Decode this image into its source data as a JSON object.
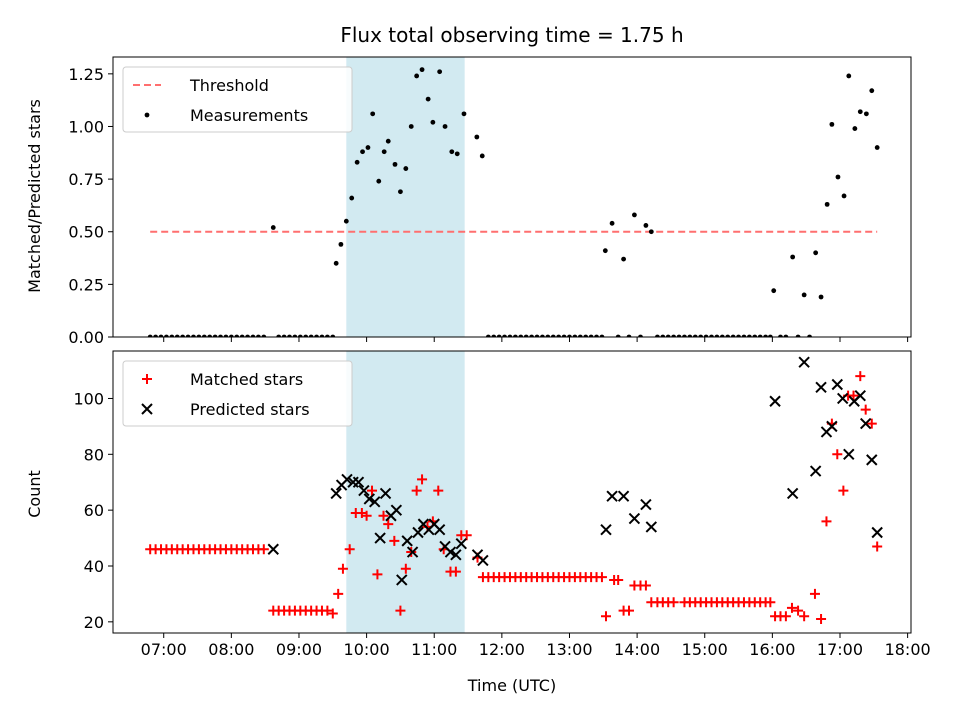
{
  "chart_data": {
    "type": "scatter",
    "title": "Flux total observing time = 1.75 h",
    "xlabel": "Time (UTC)",
    "x_unit": "hour (UTC)",
    "xlim": [
      6.25,
      18.05
    ],
    "x_tick_labels": [
      "07:00",
      "08:00",
      "09:00",
      "10:00",
      "11:00",
      "12:00",
      "13:00",
      "14:00",
      "15:00",
      "16:00",
      "17:00",
      "18:00"
    ],
    "highlight_span": [
      9.7,
      11.45
    ],
    "top": {
      "ylabel": "Matched/Predicted stars",
      "ylim": [
        0,
        1.33
      ],
      "y_ticks": [
        0,
        0.25,
        0.5,
        0.75,
        1.0,
        1.25
      ],
      "y_tick_labels": [
        "0.00",
        "0.25",
        "0.50",
        "0.75",
        "1.00",
        "1.25"
      ],
      "legend_position": "upper-left",
      "threshold": {
        "name": "Threshold",
        "value": 0.5,
        "x_range": [
          6.8,
          17.55
        ],
        "color": "#ff6f6f"
      },
      "measurements": {
        "name": "Measurements",
        "color": "#000000",
        "points": [
          [
            8.62,
            0.52
          ],
          [
            9.55,
            0.35
          ],
          [
            9.62,
            0.44
          ],
          [
            9.7,
            0.55
          ],
          [
            9.78,
            0.66
          ],
          [
            9.86,
            0.83
          ],
          [
            9.94,
            0.88
          ],
          [
            10.02,
            0.9
          ],
          [
            10.09,
            1.06
          ],
          [
            10.18,
            0.74
          ],
          [
            10.26,
            0.88
          ],
          [
            10.32,
            0.93
          ],
          [
            10.42,
            0.82
          ],
          [
            10.5,
            0.69
          ],
          [
            10.58,
            0.8
          ],
          [
            10.66,
            1.0
          ],
          [
            10.74,
            1.24
          ],
          [
            10.82,
            1.27
          ],
          [
            10.91,
            1.13
          ],
          [
            10.98,
            1.02
          ],
          [
            11.08,
            1.26
          ],
          [
            11.16,
            1.0
          ],
          [
            11.26,
            0.88
          ],
          [
            11.34,
            0.87
          ],
          [
            11.44,
            1.06
          ],
          [
            11.63,
            0.95
          ],
          [
            11.71,
            0.86
          ],
          [
            13.53,
            0.41
          ],
          [
            13.63,
            0.54
          ],
          [
            13.8,
            0.37
          ],
          [
            13.96,
            0.58
          ],
          [
            14.13,
            0.53
          ],
          [
            14.21,
            0.5
          ],
          [
            16.02,
            0.22
          ],
          [
            16.3,
            0.38
          ],
          [
            16.47,
            0.2
          ],
          [
            16.64,
            0.4
          ],
          [
            16.72,
            0.19
          ],
          [
            16.81,
            0.63
          ],
          [
            16.88,
            1.01
          ],
          [
            16.97,
            0.76
          ],
          [
            17.06,
            0.67
          ],
          [
            17.13,
            1.24
          ],
          [
            17.22,
            0.99
          ],
          [
            17.3,
            1.07
          ],
          [
            17.39,
            1.06
          ],
          [
            17.47,
            1.17
          ],
          [
            17.55,
            0.9
          ]
        ],
        "zero_points_x": [
          6.8,
          6.88,
          6.96,
          7.04,
          7.12,
          7.2,
          7.28,
          7.36,
          7.44,
          7.52,
          7.6,
          7.68,
          7.76,
          7.84,
          7.92,
          8.0,
          8.08,
          8.16,
          8.24,
          8.32,
          8.4,
          8.48,
          8.7,
          8.78,
          8.86,
          8.94,
          9.02,
          9.1,
          9.18,
          9.26,
          9.34,
          9.42,
          9.5,
          11.8,
          11.88,
          11.96,
          12.04,
          12.12,
          12.2,
          12.28,
          12.36,
          12.44,
          12.52,
          12.6,
          12.68,
          12.76,
          12.84,
          12.92,
          13.0,
          13.08,
          13.16,
          13.24,
          13.32,
          13.4,
          13.48,
          13.72,
          13.88,
          14.05,
          14.3,
          14.38,
          14.46,
          14.54,
          14.62,
          14.7,
          14.78,
          14.86,
          14.94,
          15.02,
          15.1,
          15.18,
          15.26,
          15.34,
          15.42,
          15.5,
          15.58,
          15.66,
          15.74,
          15.82,
          15.9,
          15.97,
          16.12,
          16.2,
          16.38,
          16.55
        ]
      }
    },
    "bottom": {
      "ylabel": "Count",
      "ylim": [
        16,
        117
      ],
      "y_ticks": [
        20,
        40,
        60,
        80,
        100
      ],
      "y_tick_labels": [
        "20",
        "40",
        "60",
        "80",
        "100"
      ],
      "legend_position": "upper-left",
      "matched": {
        "name": "Matched stars",
        "color": "#ff0000",
        "points": [
          [
            6.8,
            46
          ],
          [
            6.88,
            46
          ],
          [
            6.96,
            46
          ],
          [
            7.04,
            46
          ],
          [
            7.12,
            46
          ],
          [
            7.2,
            46
          ],
          [
            7.28,
            46
          ],
          [
            7.36,
            46
          ],
          [
            7.44,
            46
          ],
          [
            7.52,
            46
          ],
          [
            7.6,
            46
          ],
          [
            7.68,
            46
          ],
          [
            7.76,
            46
          ],
          [
            7.84,
            46
          ],
          [
            7.92,
            46
          ],
          [
            8.0,
            46
          ],
          [
            8.08,
            46
          ],
          [
            8.16,
            46
          ],
          [
            8.24,
            46
          ],
          [
            8.32,
            46
          ],
          [
            8.4,
            46
          ],
          [
            8.48,
            46
          ],
          [
            8.62,
            24
          ],
          [
            8.7,
            24
          ],
          [
            8.78,
            24
          ],
          [
            8.86,
            24
          ],
          [
            8.94,
            24
          ],
          [
            9.02,
            24
          ],
          [
            9.1,
            24
          ],
          [
            9.18,
            24
          ],
          [
            9.26,
            24
          ],
          [
            9.34,
            24
          ],
          [
            9.42,
            24
          ],
          [
            9.5,
            23
          ],
          [
            9.58,
            30
          ],
          [
            9.65,
            39
          ],
          [
            9.75,
            46
          ],
          [
            9.84,
            59
          ],
          [
            9.93,
            59
          ],
          [
            10.0,
            58
          ],
          [
            10.08,
            67
          ],
          [
            10.16,
            37
          ],
          [
            10.25,
            58
          ],
          [
            10.32,
            55
          ],
          [
            10.41,
            49
          ],
          [
            10.5,
            24
          ],
          [
            10.58,
            39
          ],
          [
            10.66,
            45
          ],
          [
            10.74,
            67
          ],
          [
            10.82,
            71
          ],
          [
            10.9,
            54
          ],
          [
            10.98,
            56
          ],
          [
            11.06,
            67
          ],
          [
            11.14,
            46
          ],
          [
            11.24,
            38
          ],
          [
            11.32,
            38
          ],
          [
            11.4,
            51
          ],
          [
            11.48,
            51
          ],
          [
            11.64,
            43
          ],
          [
            11.72,
            36
          ],
          [
            11.8,
            36
          ],
          [
            11.88,
            36
          ],
          [
            11.96,
            36
          ],
          [
            12.04,
            36
          ],
          [
            12.12,
            36
          ],
          [
            12.2,
            36
          ],
          [
            12.28,
            36
          ],
          [
            12.36,
            36
          ],
          [
            12.44,
            36
          ],
          [
            12.52,
            36
          ],
          [
            12.6,
            36
          ],
          [
            12.68,
            36
          ],
          [
            12.76,
            36
          ],
          [
            12.84,
            36
          ],
          [
            12.92,
            36
          ],
          [
            13.0,
            36
          ],
          [
            13.08,
            36
          ],
          [
            13.16,
            36
          ],
          [
            13.24,
            36
          ],
          [
            13.32,
            36
          ],
          [
            13.4,
            36
          ],
          [
            13.48,
            36
          ],
          [
            13.54,
            22
          ],
          [
            13.66,
            35
          ],
          [
            13.72,
            35
          ],
          [
            13.8,
            24
          ],
          [
            13.88,
            24
          ],
          [
            13.96,
            33
          ],
          [
            14.05,
            33
          ],
          [
            14.13,
            33
          ],
          [
            14.21,
            27
          ],
          [
            14.3,
            27
          ],
          [
            14.38,
            27
          ],
          [
            14.46,
            27
          ],
          [
            14.54,
            27
          ],
          [
            14.7,
            27
          ],
          [
            14.78,
            27
          ],
          [
            14.86,
            27
          ],
          [
            14.94,
            27
          ],
          [
            15.02,
            27
          ],
          [
            15.1,
            27
          ],
          [
            15.18,
            27
          ],
          [
            15.26,
            27
          ],
          [
            15.34,
            27
          ],
          [
            15.42,
            27
          ],
          [
            15.5,
            27
          ],
          [
            15.58,
            27
          ],
          [
            15.66,
            27
          ],
          [
            15.74,
            27
          ],
          [
            15.82,
            27
          ],
          [
            15.9,
            27
          ],
          [
            15.97,
            27
          ],
          [
            16.04,
            22
          ],
          [
            16.12,
            22
          ],
          [
            16.2,
            22
          ],
          [
            16.29,
            25
          ],
          [
            16.38,
            24
          ],
          [
            16.47,
            22
          ],
          [
            16.63,
            30
          ],
          [
            16.72,
            21
          ],
          [
            16.8,
            56
          ],
          [
            16.88,
            91
          ],
          [
            16.96,
            80
          ],
          [
            17.05,
            67
          ],
          [
            17.12,
            101
          ],
          [
            17.2,
            101
          ],
          [
            17.3,
            108
          ],
          [
            17.38,
            96
          ],
          [
            17.47,
            91
          ],
          [
            17.55,
            47
          ]
        ]
      },
      "predicted": {
        "name": "Predicted stars",
        "color": "#000000",
        "points": [
          [
            8.62,
            46
          ],
          [
            9.55,
            66
          ],
          [
            9.63,
            69
          ],
          [
            9.71,
            71
          ],
          [
            9.8,
            70
          ],
          [
            9.88,
            70
          ],
          [
            9.96,
            67
          ],
          [
            10.04,
            64
          ],
          [
            10.12,
            63
          ],
          [
            10.2,
            50
          ],
          [
            10.28,
            66
          ],
          [
            10.36,
            58
          ],
          [
            10.44,
            60
          ],
          [
            10.52,
            35
          ],
          [
            10.6,
            49
          ],
          [
            10.68,
            45
          ],
          [
            10.76,
            52
          ],
          [
            10.84,
            55
          ],
          [
            10.92,
            53
          ],
          [
            11.0,
            55
          ],
          [
            11.08,
            53
          ],
          [
            11.16,
            47
          ],
          [
            11.24,
            45
          ],
          [
            11.32,
            44
          ],
          [
            11.4,
            48
          ],
          [
            11.64,
            44
          ],
          [
            11.72,
            42
          ],
          [
            13.54,
            53
          ],
          [
            13.63,
            65
          ],
          [
            13.8,
            65
          ],
          [
            13.96,
            57
          ],
          [
            14.13,
            62
          ],
          [
            14.21,
            54
          ],
          [
            16.04,
            99
          ],
          [
            16.3,
            66
          ],
          [
            16.47,
            113
          ],
          [
            16.64,
            74
          ],
          [
            16.72,
            104
          ],
          [
            16.8,
            88
          ],
          [
            16.88,
            90
          ],
          [
            16.96,
            105
          ],
          [
            17.04,
            100
          ],
          [
            17.13,
            80
          ],
          [
            17.21,
            99
          ],
          [
            17.3,
            101
          ],
          [
            17.38,
            91
          ],
          [
            17.47,
            78
          ],
          [
            17.55,
            52
          ]
        ]
      }
    }
  }
}
